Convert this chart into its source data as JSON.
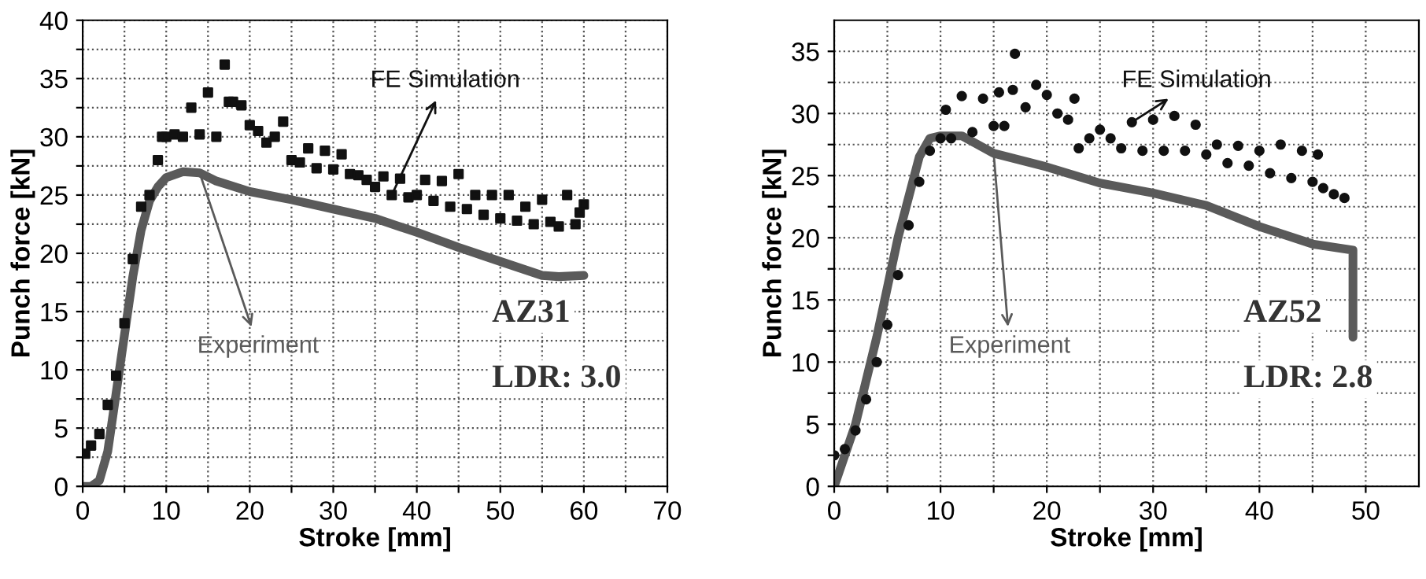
{
  "chart_data": [
    {
      "type": "scatter",
      "xlabel": "Stroke [mm]",
      "ylabel": "Punch force [kN]",
      "xlim": [
        0,
        70
      ],
      "ylim": [
        0,
        40
      ],
      "xticks": [
        0,
        {
          "value": 5,
          "label": null
        },
        10,
        {
          "value": 15,
          "label": null
        },
        20,
        {
          "value": 25,
          "label": null
        },
        30,
        {
          "value": 35,
          "label": null
        },
        40,
        {
          "value": 45,
          "label": null
        },
        50,
        {
          "value": 55,
          "label": null
        },
        60,
        {
          "value": 65,
          "label": null
        },
        70
      ],
      "yticks": [
        0,
        {
          "value": 2.5,
          "label": null
        },
        5,
        {
          "value": 7.5,
          "label": null
        },
        10,
        {
          "value": 12.5,
          "label": null
        },
        15,
        {
          "value": 17.5,
          "label": null
        },
        20,
        {
          "value": 22.5,
          "label": null
        },
        25,
        {
          "value": 27.5,
          "label": null
        },
        30,
        {
          "value": 32.5,
          "label": null
        },
        35,
        {
          "value": 37.5,
          "label": null
        },
        40
      ],
      "grid": true,
      "annotations": [
        "AZ31",
        "LDR: 3.0"
      ],
      "series": [
        {
          "name": "FE Simulation",
          "marker": "square",
          "color": "#111111",
          "x": [
            0.3,
            1,
            2,
            3,
            4,
            5,
            6,
            7,
            8,
            9,
            9.5,
            10,
            11,
            12,
            13,
            14,
            15,
            16,
            17,
            17.5,
            18,
            19,
            20,
            21,
            22,
            23,
            24,
            25,
            26,
            27,
            28,
            29,
            30,
            31,
            32,
            33,
            34,
            35,
            36,
            37,
            38,
            39,
            40,
            41,
            42,
            43,
            44,
            45,
            46,
            47,
            48,
            49,
            50,
            51,
            52,
            53,
            54,
            55,
            56,
            57,
            58,
            59,
            59.5,
            60
          ],
          "values": [
            2.8,
            3.5,
            4.5,
            7,
            9.5,
            14,
            19.5,
            24,
            25,
            28,
            30,
            30,
            30.2,
            30,
            32.5,
            30.2,
            33.8,
            30,
            36.2,
            33,
            33,
            32.7,
            31,
            30.5,
            29.5,
            30,
            31.3,
            28,
            27.8,
            29,
            27.3,
            28.8,
            27.2,
            28.5,
            26.8,
            26.7,
            26.3,
            25.7,
            26.6,
            25,
            26.4,
            24.8,
            25,
            26.3,
            24.5,
            26.2,
            24,
            26.8,
            23.8,
            25,
            23.3,
            25,
            23,
            25,
            22.8,
            24,
            22.5,
            24.6,
            22.7,
            22.3,
            25,
            22.5,
            23.5,
            24.2
          ]
        },
        {
          "name": "Experiment",
          "type": "line",
          "color": "#5a5a5a",
          "x": [
            0,
            1,
            2,
            3,
            4,
            5,
            6,
            7,
            8,
            9,
            10,
            12,
            14,
            16,
            20,
            25,
            30,
            35,
            40,
            45,
            50,
            55,
            57,
            60
          ],
          "values": [
            0,
            0,
            0.5,
            3,
            8,
            13,
            18,
            22,
            24.5,
            25.7,
            26.5,
            27,
            26.9,
            26.2,
            25.3,
            24.6,
            23.8,
            23,
            21.8,
            20.5,
            19.3,
            18.1,
            18,
            18.1
          ]
        }
      ]
    },
    {
      "type": "scatter",
      "xlabel": "Stroke [mm]",
      "ylabel": "Punch force [kN]",
      "xlim": [
        0,
        55
      ],
      "ylim": [
        0,
        37.5
      ],
      "xticks": [
        0,
        {
          "value": 5,
          "label": null
        },
        10,
        {
          "value": 15,
          "label": null
        },
        20,
        {
          "value": 25,
          "label": null
        },
        30,
        {
          "value": 35,
          "label": null
        },
        40,
        {
          "value": 45,
          "label": null
        },
        50
      ],
      "yticks": [
        0,
        {
          "value": 2.5,
          "label": null
        },
        5,
        {
          "value": 7.5,
          "label": null
        },
        10,
        {
          "value": 12.5,
          "label": null
        },
        15,
        {
          "value": 17.5,
          "label": null
        },
        20,
        {
          "value": 22.5,
          "label": null
        },
        25,
        {
          "value": 27.5,
          "label": null
        },
        30,
        {
          "value": 32.5,
          "label": null
        },
        35
      ],
      "grid": true,
      "annotations": [
        "AZ52",
        "LDR: 2.8"
      ],
      "series": [
        {
          "name": "FE Simulation",
          "marker": "circle",
          "color": "#111111",
          "x": [
            0,
            1,
            2,
            3,
            4,
            5,
            6,
            7,
            8,
            9,
            10,
            10.5,
            11,
            12,
            13,
            14,
            15,
            15.5,
            16,
            16.8,
            17,
            18,
            19,
            20,
            21,
            22,
            22.6,
            23,
            24,
            25,
            26,
            27,
            28,
            29,
            30,
            31,
            32,
            33,
            34,
            35,
            36,
            37,
            38,
            39,
            40,
            41,
            42,
            43,
            44,
            45,
            45.5,
            46,
            47,
            48
          ],
          "values": [
            2.5,
            3,
            4.5,
            7,
            10,
            13,
            17,
            21,
            24.5,
            27,
            28,
            30.3,
            28,
            31.4,
            28.5,
            31.2,
            29,
            31.7,
            29,
            31.9,
            34.8,
            30.5,
            32.3,
            31.5,
            30,
            29.5,
            31.2,
            27.2,
            28,
            28.7,
            28,
            27.2,
            29.3,
            27,
            29.5,
            27,
            29.8,
            27,
            29.1,
            26.7,
            27.5,
            26,
            27.4,
            25.8,
            27,
            25.2,
            27.5,
            24.8,
            27,
            24.5,
            26.7,
            24,
            23.5,
            23.2
          ]
        },
        {
          "name": "Experiment",
          "type": "line",
          "color": "#5a5a5a",
          "x": [
            0,
            2,
            4,
            6,
            8,
            9,
            10,
            12,
            15,
            20,
            25,
            30,
            35,
            40,
            45,
            48.8,
            48.8
          ],
          "values": [
            0,
            5,
            12,
            20,
            26.5,
            28,
            28.2,
            28.2,
            26.8,
            25.7,
            24.4,
            23.6,
            22.6,
            20.9,
            19.5,
            19,
            12
          ]
        }
      ]
    }
  ]
}
